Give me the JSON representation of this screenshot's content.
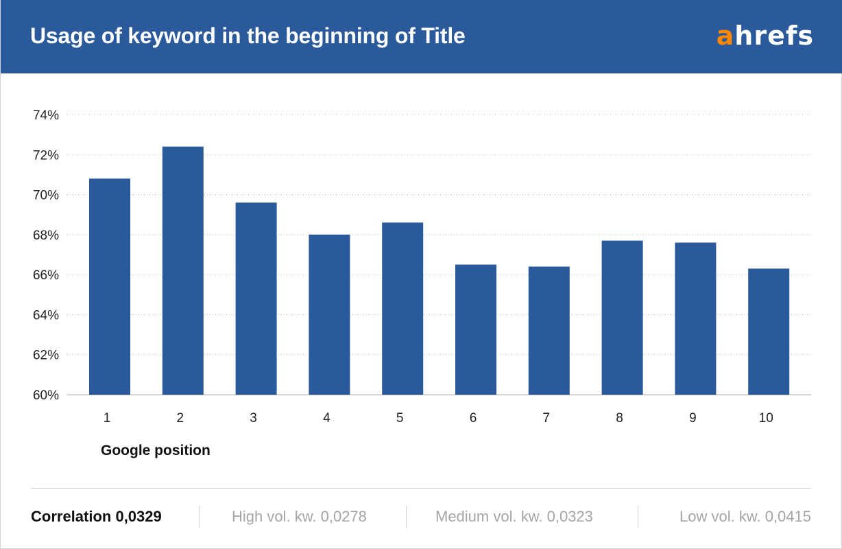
{
  "header": {
    "title": "Usage of keyword in the beginning of Title",
    "logo_a": "a",
    "logo_rest": "hrefs"
  },
  "chart_data": {
    "type": "bar",
    "categories": [
      "1",
      "2",
      "3",
      "4",
      "5",
      "6",
      "7",
      "8",
      "9",
      "10"
    ],
    "values": [
      70.8,
      72.4,
      69.6,
      68.0,
      68.6,
      66.5,
      66.4,
      67.7,
      67.6,
      66.3
    ],
    "xlabel": "Google position",
    "ylabel": "",
    "ylim": [
      60,
      74
    ],
    "yticks": [
      60,
      62,
      64,
      66,
      68,
      70,
      72,
      74
    ],
    "ytick_suffix": "%",
    "grid": true,
    "bar_color": "#2a599c"
  },
  "footer": {
    "correlation": "Correlation 0,0329",
    "high": "High vol. kw. 0,0278",
    "medium": "Medium vol. kw. 0,0323",
    "low": "Low vol. kw. 0,0415"
  },
  "colors": {
    "header_bg": "#2a599c",
    "logo_accent": "#ff8800"
  }
}
